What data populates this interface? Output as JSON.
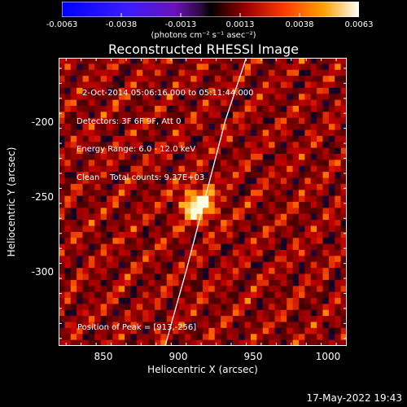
{
  "colorbar": {
    "ticks": [
      "-0.0063",
      "-0.0038",
      "-0.0013",
      "0.0013",
      "0.0038",
      "0.0063"
    ],
    "units": "(photons cm⁻² s⁻¹ asec⁻²)"
  },
  "title": "Reconstructed RHESSI Image",
  "info": {
    "time": "2-Oct-2014 05:06:16.000 to 05:11:44.000",
    "detectors": "Detectors: 3F 6F 9F, Att 0",
    "energy": "Energy Range: 6.0 - 12.0 keV",
    "clean": "Clean    Total counts: 9.37E+03"
  },
  "peak_label": "Position of Peak = [913,-256]",
  "timestamp": "17-May-2022 19:43",
  "chart_data": {
    "type": "heatmap",
    "title": "Reconstructed RHESSI Image",
    "xlabel": "Heliocentric X (arcsec)",
    "ylabel": "Heliocentric Y (arcsec)",
    "xlim": [
      820,
      1012
    ],
    "ylim": [
      -350,
      -158
    ],
    "xticks": [
      850,
      900,
      950,
      1000
    ],
    "yticks": [
      -200,
      -250,
      -300
    ],
    "colorbar_range": [
      -0.0063,
      0.0063
    ],
    "colormap": "hot-with-blue-negative",
    "peak": {
      "x": 913,
      "y": -256
    },
    "limb_curve": [
      [
        891,
        -350
      ],
      [
        905,
        -300
      ],
      [
        918,
        -250
      ],
      [
        931,
        -200
      ],
      [
        945,
        -158
      ]
    ]
  },
  "colors": {
    "background": "#000000",
    "limb": "#ffffff"
  }
}
